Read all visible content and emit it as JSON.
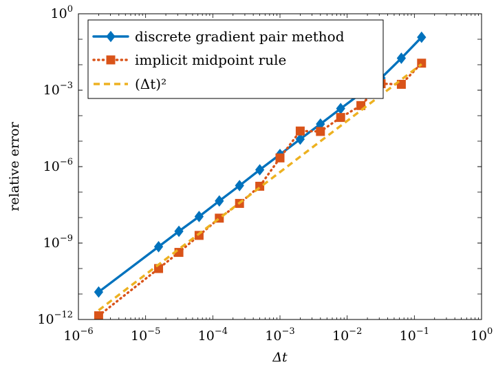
{
  "chart_data": {
    "type": "line",
    "title": "",
    "xlabel": "Δt",
    "ylabel": "relative error",
    "xscale": "log",
    "yscale": "log",
    "xlim": [
      1e-06,
      1
    ],
    "ylim": [
      1e-12,
      1
    ],
    "x_ticks": [
      {
        "base": "10",
        "exp": "−6"
      },
      {
        "base": "10",
        "exp": "−5"
      },
      {
        "base": "10",
        "exp": "−4"
      },
      {
        "base": "10",
        "exp": "−3"
      },
      {
        "base": "10",
        "exp": "−2"
      },
      {
        "base": "10",
        "exp": "−1"
      },
      {
        "base": "10",
        "exp": "0"
      }
    ],
    "y_ticks": [
      {
        "base": "10",
        "exp": "−12"
      },
      {
        "base": "10",
        "exp": "−9"
      },
      {
        "base": "10",
        "exp": "−6"
      },
      {
        "base": "10",
        "exp": "−3"
      },
      {
        "base": "10",
        "exp": "0"
      }
    ],
    "legend_position": "top-left",
    "series": [
      {
        "name": "discrete gradient pair method",
        "color": "#0072BD",
        "line_style": "solid",
        "marker": "diamond",
        "x": [
          2e-06,
          1.56e-05,
          3.13e-05,
          6.25e-05,
          0.000125,
          0.00025,
          0.0005,
          0.001,
          0.002,
          0.004,
          0.008,
          0.016,
          0.032,
          0.064,
          0.128
        ],
        "y": [
          1.2e-11,
          7.2e-10,
          2.9e-09,
          1.1e-08,
          4.5e-08,
          1.8e-07,
          7.5e-07,
          3e-06,
          1.2e-05,
          4.7e-05,
          0.00019,
          0.00075,
          0.003,
          0.018,
          0.12
        ]
      },
      {
        "name": "implicit midpoint rule",
        "color": "#D95319",
        "line_style": "dotted",
        "marker": "square",
        "x": [
          2e-06,
          1.56e-05,
          3.13e-05,
          6.25e-05,
          0.000125,
          0.00025,
          0.0005,
          0.001,
          0.002,
          0.004,
          0.008,
          0.016,
          0.032,
          0.064,
          0.128
        ],
        "y": [
          1.4e-12,
          1e-10,
          4.3e-10,
          2e-09,
          9.5e-09,
          3.6e-08,
          1.7e-07,
          2.2e-06,
          2.5e-05,
          2.4e-05,
          8.5e-05,
          0.00025,
          0.0018,
          0.0017,
          0.0115
        ]
      },
      {
        "name": "(Δt)²",
        "color": "#EDB120",
        "line_style": "dashed",
        "marker": "none",
        "x": [
          2e-06,
          0.128
        ],
        "y": [
          2.3e-12,
          0.0105
        ]
      }
    ]
  }
}
